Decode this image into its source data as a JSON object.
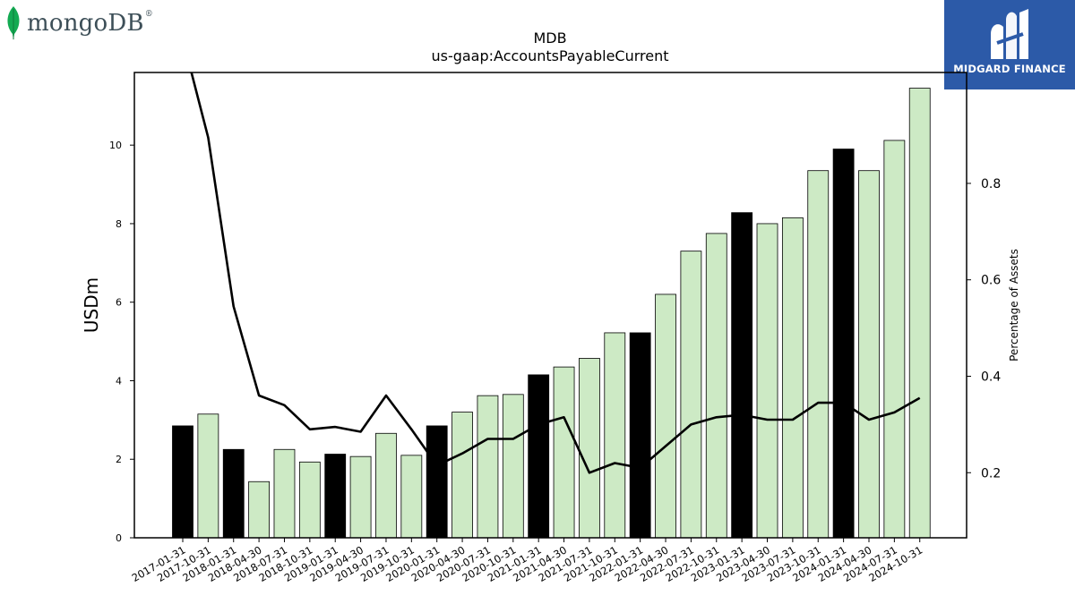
{
  "brand_left": {
    "name": "mongoDB",
    "mark": "®",
    "icon": "leaf-icon",
    "color": "#13aa52"
  },
  "brand_right": {
    "name": "MIDGARD FINANCE",
    "icon": "midgard-logo-icon",
    "background": "#2c5aa8"
  },
  "chart_data": {
    "type": "bar",
    "title": "MDB",
    "subtitle": "us-gaap:AccountsPayableCurrent",
    "ylabel": "USDm",
    "y2label": "Percentage of Assets",
    "ylim": [
      0,
      11.85
    ],
    "y2lim": [
      0.065,
      1.03
    ],
    "yticks": [
      0,
      2,
      4,
      6,
      8,
      10
    ],
    "y2ticks": [
      0.2,
      0.4,
      0.6,
      0.8
    ],
    "grid": false,
    "colors": {
      "highlight": "#000000",
      "regular": "#cdeac5",
      "edge": "#000000",
      "line": "#000000"
    },
    "categories": [
      "2017-01-31",
      "2017-10-31",
      "2018-01-31",
      "2018-04-30",
      "2018-07-31",
      "2018-10-31",
      "2019-01-31",
      "2019-04-30",
      "2019-07-31",
      "2019-10-31",
      "2020-01-31",
      "2020-04-30",
      "2020-07-31",
      "2020-10-31",
      "2021-01-31",
      "2021-04-30",
      "2021-07-31",
      "2021-10-31",
      "2022-01-31",
      "2022-04-30",
      "2022-07-31",
      "2022-10-31",
      "2023-01-31",
      "2023-04-30",
      "2023-07-31",
      "2023-10-31",
      "2024-01-31",
      "2024-04-30",
      "2024-07-31",
      "2024-10-31"
    ],
    "highlighted": [
      true,
      false,
      true,
      false,
      false,
      false,
      true,
      false,
      false,
      false,
      true,
      false,
      false,
      false,
      true,
      false,
      false,
      false,
      true,
      false,
      false,
      false,
      true,
      false,
      false,
      false,
      true,
      false,
      false,
      false
    ],
    "series": [
      {
        "axis": "left",
        "kind": "bar",
        "values": [
          2.85,
          3.15,
          2.25,
          1.43,
          2.25,
          1.93,
          2.13,
          2.07,
          2.66,
          2.1,
          2.85,
          3.2,
          3.62,
          3.65,
          4.15,
          4.35,
          4.57,
          5.22,
          5.22,
          6.2,
          7.3,
          7.75,
          8.28,
          8.0,
          8.15,
          9.35,
          9.9,
          9.35,
          10.12,
          11.45
        ]
      },
      {
        "axis": "right",
        "kind": "line",
        "values": [
          1.1,
          0.895,
          0.545,
          0.36,
          0.34,
          0.29,
          0.295,
          0.285,
          0.36,
          0.29,
          0.215,
          0.24,
          0.27,
          0.27,
          0.3,
          0.315,
          0.2,
          0.22,
          0.21,
          0.255,
          0.3,
          0.315,
          0.32,
          0.31,
          0.31,
          0.345,
          0.345,
          0.31,
          0.325,
          0.355
        ]
      }
    ]
  }
}
